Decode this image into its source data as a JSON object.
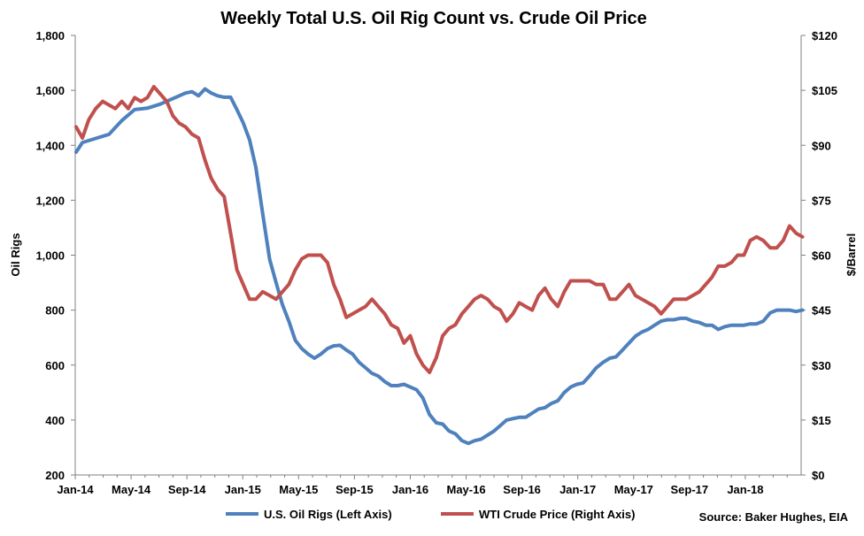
{
  "chart_data": {
    "type": "line",
    "title": "Weekly Total U.S. Oil Rig Count vs. Crude Oil Price",
    "ylabel_left": "Oil Rigs",
    "ylabel_right": "$/Barrel",
    "ylim_left": [
      200,
      1800
    ],
    "ylim_right": [
      0,
      120
    ],
    "x_range_months": [
      "2014-01",
      "2018-05"
    ],
    "x_tick_labels": [
      "Jan-14",
      "May-14",
      "Sep-14",
      "Jan-15",
      "May-15",
      "Sep-15",
      "Jan-16",
      "May-16",
      "Sep-16",
      "Jan-17",
      "May-17",
      "Sep-17",
      "Jan-18"
    ],
    "y_tick_labels_left": [
      "200",
      "400",
      "600",
      "800",
      "1,000",
      "1,200",
      "1,400",
      "1,600",
      "1,800"
    ],
    "y_tick_labels_right": [
      "$0",
      "$15",
      "$30",
      "$45",
      "$60",
      "$75",
      "$90",
      "$105",
      "$120"
    ],
    "grid": false,
    "legend_position": "bottom",
    "source": "Source: Baker Hughes, EIA",
    "series": [
      {
        "name": "U.S. Oil Rigs (Left Axis)",
        "axis": "left",
        "color": "#4F81BD",
        "x": [
          "2014-01-03",
          "2014-01-17",
          "2014-02-14",
          "2014-03-14",
          "2014-04-11",
          "2014-05-09",
          "2014-06-06",
          "2014-07-04",
          "2014-08-01",
          "2014-08-29",
          "2014-09-12",
          "2014-09-26",
          "2014-10-10",
          "2014-10-24",
          "2014-11-07",
          "2014-11-21",
          "2014-12-05",
          "2014-12-19",
          "2015-01-02",
          "2015-01-16",
          "2015-01-30",
          "2015-02-13",
          "2015-02-27",
          "2015-03-13",
          "2015-03-27",
          "2015-04-10",
          "2015-04-24",
          "2015-05-08",
          "2015-05-22",
          "2015-06-05",
          "2015-06-19",
          "2015-07-03",
          "2015-07-17",
          "2015-07-31",
          "2015-08-14",
          "2015-08-28",
          "2015-09-11",
          "2015-09-25",
          "2015-10-09",
          "2015-10-23",
          "2015-11-06",
          "2015-11-20",
          "2015-12-04",
          "2015-12-18",
          "2016-01-01",
          "2016-01-15",
          "2016-01-29",
          "2016-02-12",
          "2016-02-26",
          "2016-03-11",
          "2016-03-25",
          "2016-04-08",
          "2016-04-22",
          "2016-05-06",
          "2016-05-20",
          "2016-06-03",
          "2016-06-17",
          "2016-07-01",
          "2016-07-15",
          "2016-07-29",
          "2016-08-12",
          "2016-08-26",
          "2016-09-09",
          "2016-09-23",
          "2016-10-07",
          "2016-10-21",
          "2016-11-04",
          "2016-11-18",
          "2016-12-02",
          "2016-12-16",
          "2016-12-30",
          "2017-01-13",
          "2017-01-27",
          "2017-02-10",
          "2017-02-24",
          "2017-03-10",
          "2017-03-24",
          "2017-04-07",
          "2017-04-21",
          "2017-05-05",
          "2017-05-19",
          "2017-06-02",
          "2017-06-16",
          "2017-06-30",
          "2017-07-14",
          "2017-07-28",
          "2017-08-11",
          "2017-08-25",
          "2017-09-08",
          "2017-09-22",
          "2017-10-06",
          "2017-10-20",
          "2017-11-03",
          "2017-11-17",
          "2017-12-01",
          "2017-12-15",
          "2017-12-29",
          "2018-01-12",
          "2018-01-26",
          "2018-02-09",
          "2018-02-23",
          "2018-03-09",
          "2018-03-23",
          "2018-04-06",
          "2018-04-20",
          "2018-05-04"
        ],
        "values": [
          1375,
          1410,
          1425,
          1440,
          1490,
          1530,
          1535,
          1550,
          1570,
          1590,
          1595,
          1580,
          1605,
          1590,
          1580,
          1575,
          1575,
          1530,
          1482,
          1420,
          1320,
          1150,
          985,
          900,
          820,
          760,
          690,
          660,
          640,
          625,
          640,
          660,
          670,
          672,
          655,
          640,
          610,
          590,
          570,
          560,
          540,
          525,
          525,
          530,
          520,
          510,
          480,
          420,
          390,
          385,
          360,
          350,
          325,
          315,
          325,
          330,
          345,
          360,
          380,
          400,
          405,
          410,
          410,
          425,
          440,
          445,
          460,
          470,
          500,
          520,
          530,
          535,
          560,
          590,
          610,
          625,
          630,
          655,
          680,
          705,
          720,
          730,
          745,
          760,
          765,
          765,
          770,
          770,
          760,
          755,
          745,
          745,
          730,
          740,
          745,
          745,
          745,
          750,
          750,
          760,
          790,
          800,
          800,
          800,
          795,
          800
        ]
      },
      {
        "name": "WTI Crude Price (Right Axis)",
        "axis": "right",
        "color": "#C0504D",
        "x": [
          "2014-01-03",
          "2014-01-17",
          "2014-01-31",
          "2014-02-14",
          "2014-02-28",
          "2014-03-14",
          "2014-03-28",
          "2014-04-11",
          "2014-04-25",
          "2014-05-09",
          "2014-05-23",
          "2014-06-06",
          "2014-06-20",
          "2014-07-04",
          "2014-07-18",
          "2014-08-01",
          "2014-08-15",
          "2014-08-29",
          "2014-09-12",
          "2014-09-26",
          "2014-10-10",
          "2014-10-24",
          "2014-11-07",
          "2014-11-21",
          "2014-12-05",
          "2014-12-19",
          "2015-01-02",
          "2015-01-16",
          "2015-01-30",
          "2015-02-13",
          "2015-02-27",
          "2015-03-13",
          "2015-03-27",
          "2015-04-10",
          "2015-04-24",
          "2015-05-08",
          "2015-05-22",
          "2015-06-05",
          "2015-06-19",
          "2015-07-03",
          "2015-07-17",
          "2015-07-31",
          "2015-08-14",
          "2015-08-28",
          "2015-09-11",
          "2015-09-25",
          "2015-10-09",
          "2015-10-23",
          "2015-11-06",
          "2015-11-20",
          "2015-12-04",
          "2015-12-18",
          "2016-01-01",
          "2016-01-15",
          "2016-01-29",
          "2016-02-12",
          "2016-02-26",
          "2016-03-11",
          "2016-03-25",
          "2016-04-08",
          "2016-04-22",
          "2016-05-06",
          "2016-05-20",
          "2016-06-03",
          "2016-06-17",
          "2016-07-01",
          "2016-07-15",
          "2016-07-29",
          "2016-08-12",
          "2016-08-26",
          "2016-09-09",
          "2016-09-23",
          "2016-10-07",
          "2016-10-21",
          "2016-11-04",
          "2016-11-18",
          "2016-12-02",
          "2016-12-16",
          "2016-12-30",
          "2017-01-13",
          "2017-01-27",
          "2017-02-10",
          "2017-02-24",
          "2017-03-10",
          "2017-03-24",
          "2017-04-07",
          "2017-04-21",
          "2017-05-05",
          "2017-05-19",
          "2017-06-02",
          "2017-06-16",
          "2017-06-30",
          "2017-07-14",
          "2017-07-28",
          "2017-08-11",
          "2017-08-25",
          "2017-09-08",
          "2017-09-22",
          "2017-10-06",
          "2017-10-20",
          "2017-11-03",
          "2017-11-17",
          "2017-12-01",
          "2017-12-15",
          "2017-12-29",
          "2018-01-12",
          "2018-01-26",
          "2018-02-09",
          "2018-02-23",
          "2018-03-09",
          "2018-03-23",
          "2018-04-06",
          "2018-04-20",
          "2018-05-04"
        ],
        "values": [
          95,
          92,
          97,
          100,
          102,
          101,
          100,
          102,
          100,
          103,
          102,
          103,
          106,
          104,
          102,
          98,
          96,
          95,
          93,
          92,
          86,
          81,
          78,
          76,
          66,
          56,
          52,
          48,
          48,
          50,
          49,
          48,
          50,
          52,
          56,
          59,
          60,
          60,
          60,
          58,
          52,
          48,
          43,
          44,
          45,
          46,
          48,
          46,
          44,
          41,
          40,
          36,
          38,
          33,
          30,
          28,
          32,
          38,
          40,
          41,
          44,
          46,
          48,
          49,
          48,
          46,
          45,
          42,
          44,
          47,
          46,
          45,
          49,
          51,
          48,
          46,
          50,
          53,
          53,
          53,
          53,
          52,
          52,
          48,
          48,
          50,
          52,
          49,
          48,
          47,
          46,
          44,
          46,
          48,
          48,
          48,
          49,
          50,
          52,
          54,
          57,
          57,
          58,
          60,
          60,
          64,
          65,
          64,
          62,
          62,
          64,
          68,
          66,
          65
        ]
      }
    ]
  }
}
